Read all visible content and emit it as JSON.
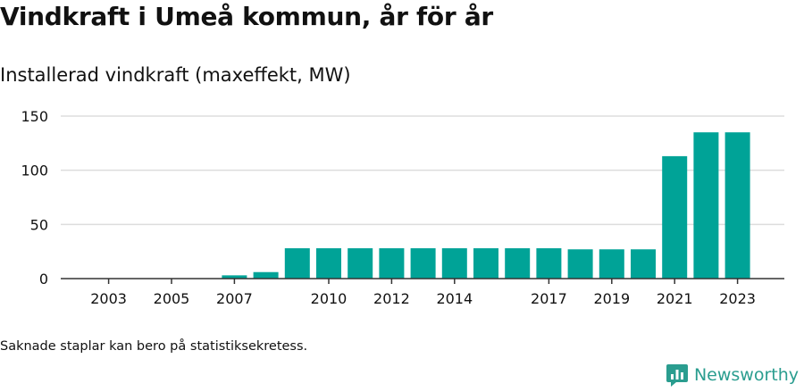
{
  "header": {
    "title": "Vindkraft i Umeå kommun, år för år",
    "subtitle": "Installerad vindkraft (maxeffekt, MW)"
  },
  "footer": {
    "note": "Saknade staplar kan bero på statistiksekretess.",
    "brand": "Newsworthy"
  },
  "colors": {
    "bar": "#00a397",
    "grid": "#dddddd",
    "axis": "#333333",
    "brand": "#2a9d8f"
  },
  "chart_data": {
    "type": "bar",
    "title": "Vindkraft i Umeå kommun, år för år",
    "subtitle": "Installerad vindkraft (maxeffekt, MW)",
    "xlabel": "",
    "ylabel": "",
    "categories": [
      "2003",
      "2004",
      "2005",
      "2006",
      "2007",
      "2008",
      "2009",
      "2010",
      "2011",
      "2012",
      "2013",
      "2014",
      "2015",
      "2016",
      "2017",
      "2018",
      "2019",
      "2020",
      "2021",
      "2022",
      "2023"
    ],
    "values": [
      0,
      0,
      0,
      0,
      3,
      6,
      28,
      28,
      28,
      28,
      28,
      28,
      28,
      28,
      28,
      27,
      27,
      27,
      113,
      135,
      135
    ],
    "x_tick_labels": [
      "2003",
      "2005",
      "2007",
      "2010",
      "2012",
      "2014",
      "2017",
      "2019",
      "2021",
      "2023"
    ],
    "y_ticks": [
      0,
      50,
      100,
      150
    ],
    "ylim": [
      0,
      150
    ],
    "grid": true,
    "legend": "none"
  }
}
